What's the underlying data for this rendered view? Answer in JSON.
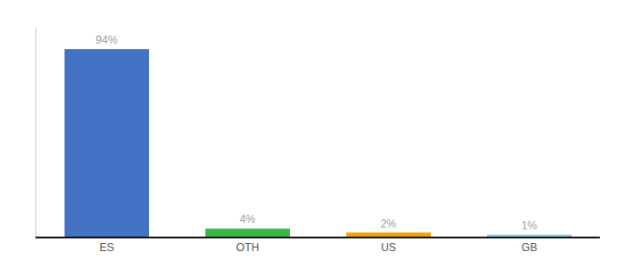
{
  "chart_data": {
    "type": "bar",
    "categories": [
      "ES",
      "OTH",
      "US",
      "GB"
    ],
    "values": [
      94,
      4,
      2,
      1
    ],
    "value_labels": [
      "94%",
      "4%",
      "2%",
      "1%"
    ],
    "colors": [
      "#4472C4",
      "#3CB54A",
      "#F0A500",
      "#87CEEB"
    ],
    "ylim": [
      0,
      105
    ],
    "data_labels": true,
    "tick_labels": "x",
    "grid": false
  }
}
